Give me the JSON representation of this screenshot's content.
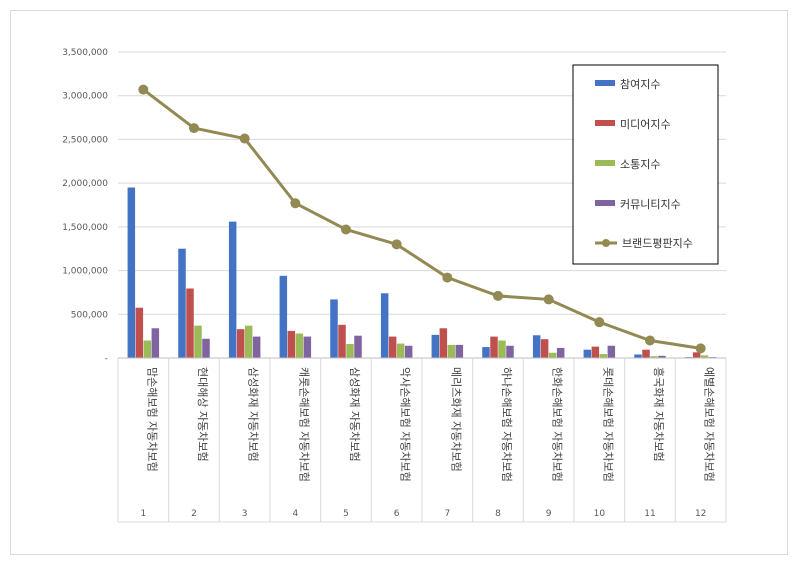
{
  "chart_data": {
    "type": "bar",
    "categories": [
      "맘손해보험 자동차보험",
      "현대해상 자동차보험",
      "삼성화재 자동차보험",
      "캐롯손해보험 자동차보험",
      "삼성화재 자동차보험",
      "악사손해보험 자동차보험",
      "메리츠화재 자동차보험",
      "하나손해보험 자동차보험",
      "한화손해보험 자동차보험",
      "롯데손해보험 자동차보험",
      "흥국화재 자동차보험",
      "예별손해보험 자동차보험"
    ],
    "indices": [
      "1",
      "2",
      "3",
      "4",
      "5",
      "6",
      "7",
      "8",
      "9",
      "10",
      "11",
      "12"
    ],
    "series": [
      {
        "name": "참여지수",
        "color": "#4472C4",
        "values": [
          1950000,
          1250000,
          1560000,
          940000,
          670000,
          740000,
          265000,
          125000,
          260000,
          95000,
          40000,
          10000
        ]
      },
      {
        "name": "미디어지수",
        "color": "#C0504D",
        "values": [
          575000,
          795000,
          330000,
          310000,
          380000,
          245000,
          340000,
          245000,
          215000,
          130000,
          95000,
          65000
        ]
      },
      {
        "name": "소통지수",
        "color": "#9BBB59",
        "values": [
          200000,
          370000,
          370000,
          280000,
          160000,
          165000,
          150000,
          200000,
          60000,
          45000,
          20000,
          30000
        ]
      },
      {
        "name": "커뮤니티지수",
        "color": "#8064A2",
        "values": [
          340000,
          220000,
          245000,
          245000,
          255000,
          140000,
          150000,
          140000,
          115000,
          140000,
          25000,
          10000
        ]
      }
    ],
    "line": {
      "name": "브랜드평판지수",
      "color": "#938953",
      "values": [
        3070000,
        2630000,
        2510000,
        1770000,
        1470000,
        1300000,
        920000,
        710000,
        670000,
        410000,
        200000,
        110000
      ]
    },
    "yticks": [
      "-",
      "500,000",
      "1,000,000",
      "1,500,000",
      "2,000,000",
      "2,500,000",
      "3,000,000",
      "3,500,000"
    ],
    "ylim": [
      0,
      3500000
    ],
    "legend_position": "top-right",
    "grid": true
  }
}
